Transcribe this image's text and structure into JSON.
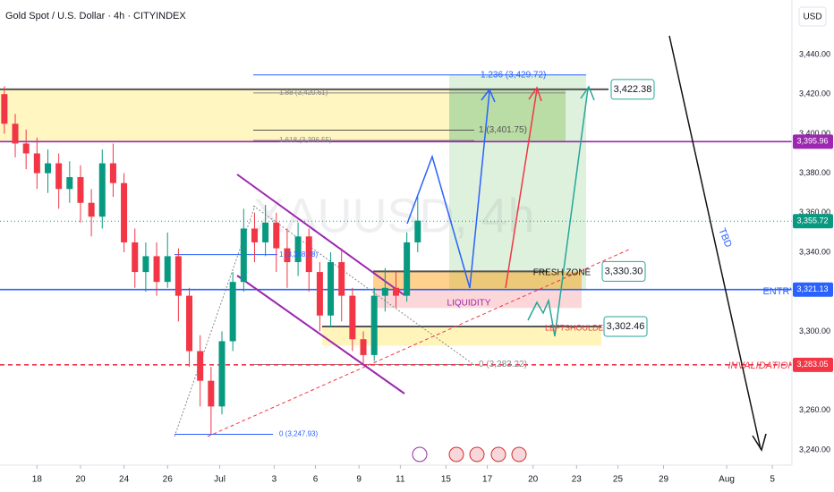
{
  "chart_data": {
    "type": "candlestick",
    "title": "Gold Spot / U.S. Dollar · 4h · CITYINDEX",
    "watermark": "XAUUSD, 4h",
    "y_unit": "USD",
    "up_color": "#089981",
    "down_color": "#f23645",
    "x": [
      -1.5,
      -1,
      -0.5,
      0,
      0.5,
      1,
      1.5,
      2,
      2.5,
      3,
      3.5,
      4,
      4.5,
      5,
      5.5,
      6,
      6.5,
      7,
      7.5,
      8,
      8.5,
      9,
      9.5,
      10,
      10.5,
      11,
      11.5,
      12,
      12.5,
      13,
      13.5,
      14,
      14.5,
      15,
      15.5,
      16,
      16.5,
      17,
      17.5
    ],
    "open": [
      3420,
      3405,
      3395,
      3390,
      3380,
      3385,
      3372,
      3378,
      3365,
      3358,
      3385,
      3375,
      3345,
      3330,
      3338,
      3325,
      3338,
      3318,
      3290,
      3275,
      3262,
      3295,
      3325,
      3352,
      3345,
      3355,
      3342,
      3335,
      3348,
      3330,
      3308,
      3335,
      3318,
      3296,
      3288,
      3318,
      3322,
      3318,
      3345
    ],
    "high": [
      3424,
      3410,
      3402,
      3398,
      3392,
      3390,
      3386,
      3384,
      3372,
      3392,
      3395,
      3380,
      3352,
      3345,
      3345,
      3350,
      3342,
      3322,
      3298,
      3282,
      3300,
      3330,
      3362,
      3360,
      3364,
      3360,
      3352,
      3355,
      3352,
      3335,
      3340,
      3342,
      3322,
      3300,
      3322,
      3332,
      3330,
      3350,
      3368
    ],
    "low": [
      3400,
      3388,
      3382,
      3372,
      3370,
      3362,
      3365,
      3355,
      3348,
      3352,
      3368,
      3340,
      3322,
      3320,
      3318,
      3322,
      3305,
      3282,
      3262,
      3248,
      3258,
      3290,
      3320,
      3335,
      3338,
      3330,
      3322,
      3328,
      3320,
      3300,
      3302,
      3305,
      3290,
      3283,
      3285,
      3310,
      3312,
      3315,
      3340
    ],
    "close": [
      3405,
      3395,
      3390,
      3380,
      3385,
      3372,
      3378,
      3365,
      3358,
      3385,
      3375,
      3345,
      3330,
      3338,
      3325,
      3338,
      3318,
      3290,
      3275,
      3262,
      3295,
      3325,
      3352,
      3345,
      3355,
      3342,
      3335,
      3348,
      3330,
      3308,
      3335,
      3318,
      3296,
      3288,
      3318,
      3322,
      3318,
      3345,
      3356
    ],
    "xlim": [
      -1.7,
      34.7
    ],
    "xticks": [
      {
        "value": 0,
        "label": "18"
      },
      {
        "value": 2,
        "label": "20"
      },
      {
        "value": 4,
        "label": "24"
      },
      {
        "value": 6,
        "label": "26"
      },
      {
        "value": 8.4,
        "label": "Jul"
      },
      {
        "value": 10.9,
        "label": "3"
      },
      {
        "value": 12.8,
        "label": "6"
      },
      {
        "value": 14.8,
        "label": "9"
      },
      {
        "value": 16.7,
        "label": "11"
      },
      {
        "value": 18.8,
        "label": "15"
      },
      {
        "value": 20.7,
        "label": "17"
      },
      {
        "value": 22.8,
        "label": "20"
      },
      {
        "value": 24.8,
        "label": "23"
      },
      {
        "value": 26.7,
        "label": "25"
      },
      {
        "value": 28.8,
        "label": "29"
      },
      {
        "value": 31.7,
        "label": "Aug"
      },
      {
        "value": 33.8,
        "label": "5"
      }
    ],
    "ylim": [
      3232.3,
      3467.6
    ],
    "yticks": [
      {
        "value": 3440,
        "label": "3,440.00"
      },
      {
        "value": 3420,
        "label": "3,420.00"
      },
      {
        "value": 3400,
        "label": "3,400.00"
      },
      {
        "value": 3380,
        "label": "3,380.00"
      },
      {
        "value": 3360,
        "label": "3,360.00"
      },
      {
        "value": 3340,
        "label": "3,340.00"
      },
      {
        "value": 3300,
        "label": "3,300.00"
      },
      {
        "value": 3260,
        "label": "3,260.00"
      },
      {
        "value": 3240,
        "label": "3,240.00"
      }
    ],
    "fib_levels": [
      {
        "value": 3429.72,
        "label": "1.236 (3,429.72)"
      },
      {
        "value": 3420.61,
        "label": "1.88 (3,420.61)"
      },
      {
        "value": 3401.75,
        "label": "1 (3,401.75)"
      },
      {
        "value": 3396.55,
        "label": "1.618 (3,396.55)"
      },
      {
        "value": 3338.78,
        "label": "1 (3,338.78)"
      },
      {
        "value": 3283.22,
        "label": "0 (3,283.22)"
      },
      {
        "value": 3247.93,
        "label": "0 (3,247.93)"
      }
    ],
    "price_labels": [
      {
        "value": 3422.38,
        "label": "3,422.38"
      },
      {
        "value": 3330.3,
        "label": "3,330.30"
      },
      {
        "value": 3302.46,
        "label": "3,302.46"
      }
    ],
    "axis_levels": [
      {
        "value": 3395.96,
        "label": "3,395.96",
        "color": "#9c27b0"
      },
      {
        "value": 3355.72,
        "label": "3,355.72",
        "color": "#089981"
      },
      {
        "value": 3321.13,
        "label": "3,321.13",
        "color": "#2962ff"
      },
      {
        "value": 3283.05,
        "label": "3,283.05",
        "color": "#f23645"
      }
    ],
    "annotations": {
      "fresh_zone": "FRESH ZONE",
      "liquidity": "LIQUIDITY",
      "left_shoulder": "LEFTSHOULDER",
      "entry": "ENTRY",
      "invalidation": "INVALIDATION",
      "tbd": "TBD"
    }
  }
}
